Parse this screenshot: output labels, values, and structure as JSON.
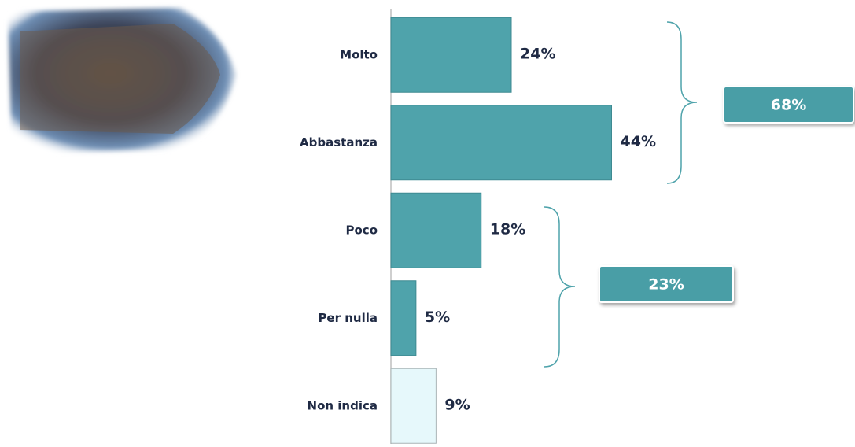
{
  "chart_data": {
    "type": "bar",
    "orientation": "horizontal",
    "categories": [
      "Molto",
      "Abbastanza",
      "Poco",
      "Per nulla",
      "Non indica"
    ],
    "values": [
      24,
      44,
      18,
      5,
      9
    ],
    "value_labels": [
      "24%",
      "44%",
      "18%",
      "5%",
      "9%"
    ],
    "colors": [
      "#4fa3ab",
      "#4fa3ab",
      "#4fa3ab",
      "#4fa3ab",
      "#e6f8fb"
    ],
    "annotations": [
      "68%",
      "23%"
    ]
  }
}
